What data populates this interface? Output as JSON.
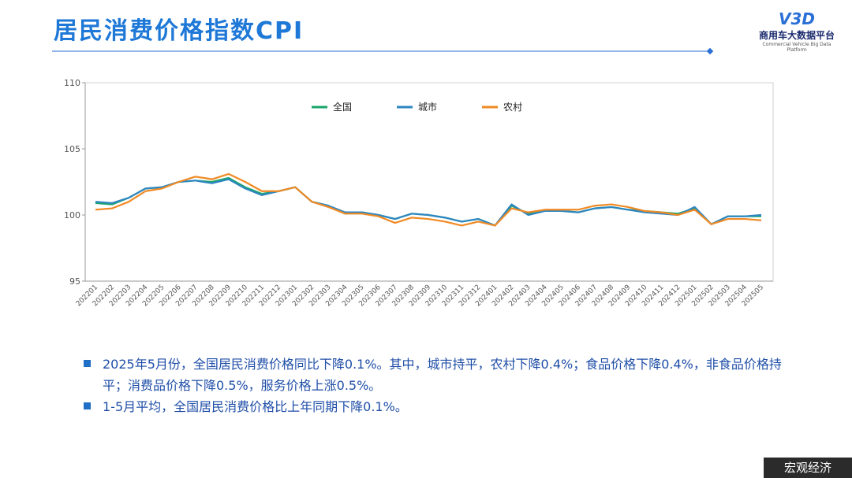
{
  "header": {
    "title": "居民消费价格指数CPI",
    "logo_mark": "V3D",
    "logo_name": "商用车大数据平台",
    "logo_subtitle": "Commercial Vehicle Big Data Platform"
  },
  "chart_data": {
    "type": "line",
    "categories": [
      "202201",
      "202202",
      "202203",
      "202204",
      "202205",
      "202206",
      "202207",
      "202208",
      "202209",
      "202210",
      "202211",
      "202212",
      "202301",
      "202302",
      "202303",
      "202304",
      "202305",
      "202306",
      "202307",
      "202308",
      "202309",
      "202310",
      "202311",
      "202312",
      "202401",
      "202402",
      "202403",
      "202404",
      "202405",
      "202406",
      "202407",
      "202408",
      "202409",
      "202410",
      "202411",
      "202412",
      "202501",
      "202502",
      "202503",
      "202504",
      "202505"
    ],
    "series": [
      {
        "name": "全国",
        "color": "#1aa56b",
        "values": [
          100.9,
          100.8,
          101.3,
          102.0,
          102.1,
          102.5,
          102.6,
          102.5,
          102.8,
          102.1,
          101.6,
          101.8,
          102.1,
          101.0,
          100.7,
          100.1,
          100.2,
          100.0,
          99.7,
          100.1,
          100.0,
          99.8,
          99.5,
          99.7,
          99.2,
          100.7,
          100.1,
          100.3,
          100.3,
          100.2,
          100.5,
          100.6,
          100.4,
          100.3,
          100.2,
          100.1,
          100.5,
          99.3,
          99.9,
          99.9,
          99.9
        ]
      },
      {
        "name": "城市",
        "color": "#2e86c1",
        "values": [
          101.0,
          100.9,
          101.3,
          102.0,
          102.1,
          102.5,
          102.6,
          102.4,
          102.7,
          102.0,
          101.5,
          101.8,
          102.1,
          101.0,
          100.7,
          100.2,
          100.2,
          100.0,
          99.7,
          100.1,
          100.0,
          99.8,
          99.5,
          99.7,
          99.2,
          100.8,
          100.0,
          100.3,
          100.3,
          100.2,
          100.5,
          100.6,
          100.4,
          100.2,
          100.1,
          100.0,
          100.6,
          99.3,
          99.9,
          99.9,
          100.0
        ]
      },
      {
        "name": "农村",
        "color": "#f08a24",
        "values": [
          100.4,
          100.5,
          101.0,
          101.8,
          102.0,
          102.5,
          102.9,
          102.7,
          103.1,
          102.5,
          101.8,
          101.8,
          102.1,
          101.0,
          100.6,
          100.1,
          100.1,
          99.9,
          99.4,
          99.8,
          99.7,
          99.5,
          99.2,
          99.5,
          99.2,
          100.5,
          100.2,
          100.4,
          100.4,
          100.4,
          100.7,
          100.8,
          100.6,
          100.3,
          100.2,
          100.0,
          100.4,
          99.3,
          99.7,
          99.7,
          99.6
        ]
      }
    ],
    "ylim": [
      95,
      110
    ],
    "yticks": [
      95,
      100,
      105,
      110
    ],
    "grid": false,
    "legend": "top"
  },
  "bullets": [
    "2025年5月份，全国居民消费价格同比下降0.1%。其中，城市持平，农村下降0.4%；食品价格下降0.4%，非食品价格持平；消费品价格下降0.5%，服务价格上涨0.5%。",
    "1-5月平均，全国居民消费价格比上年同期下降0.1%。"
  ],
  "footer": "宏观经济"
}
